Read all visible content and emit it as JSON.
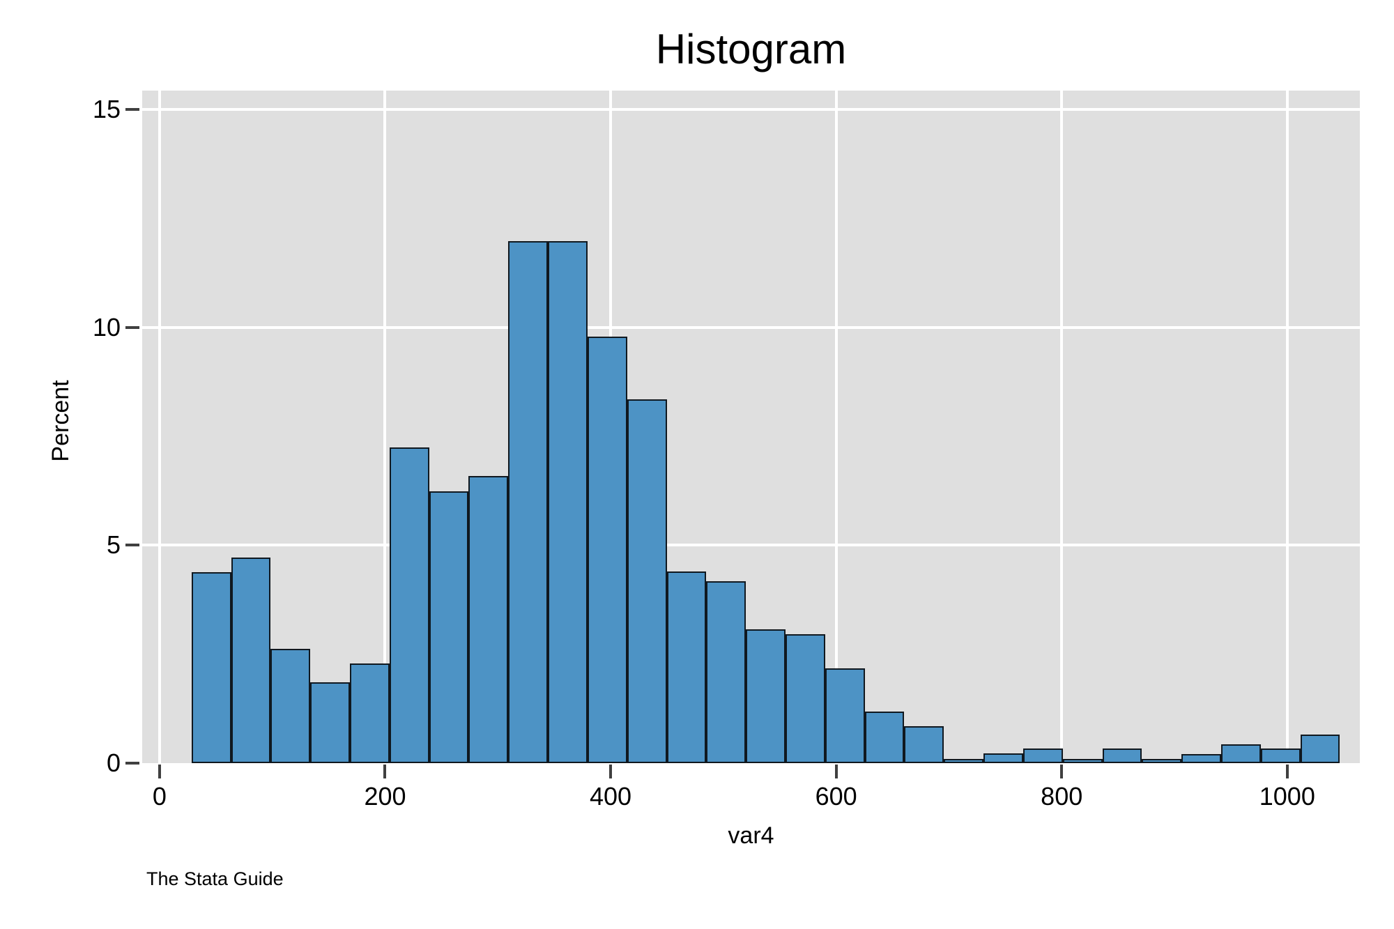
{
  "chart_data": {
    "type": "bar",
    "subtype": "histogram",
    "title": "Histogram",
    "xlabel": "var4",
    "ylabel": "Percent",
    "watermark": "The Stata Guide",
    "x_ticks": [
      0,
      200,
      400,
      600,
      800,
      1000
    ],
    "y_ticks": [
      0,
      5,
      10,
      15
    ],
    "xlim": [
      -15.4,
      1064.4
    ],
    "ylim": [
      0,
      15.43
    ],
    "grid": true,
    "legend": "none",
    "bin_start": 28.3,
    "bin_width": 35.12,
    "bars_percent": [
      4.38,
      4.71,
      2.62,
      1.85,
      2.28,
      7.24,
      6.23,
      6.58,
      11.97,
      11.97,
      9.79,
      8.35,
      4.39,
      4.17,
      3.07,
      2.96,
      2.17,
      1.18,
      0.85,
      0.1,
      0.22,
      0.34,
      0.1,
      0.34,
      0.1,
      0.21,
      0.43,
      0.33,
      0.66
    ],
    "colors": {
      "bar_fill": "#4d93c5",
      "bar_border": "#10181f",
      "plot_bg": "#dfdfdf",
      "gridline": "#ffffff",
      "tick": "#404040",
      "text": "#000000"
    }
  }
}
